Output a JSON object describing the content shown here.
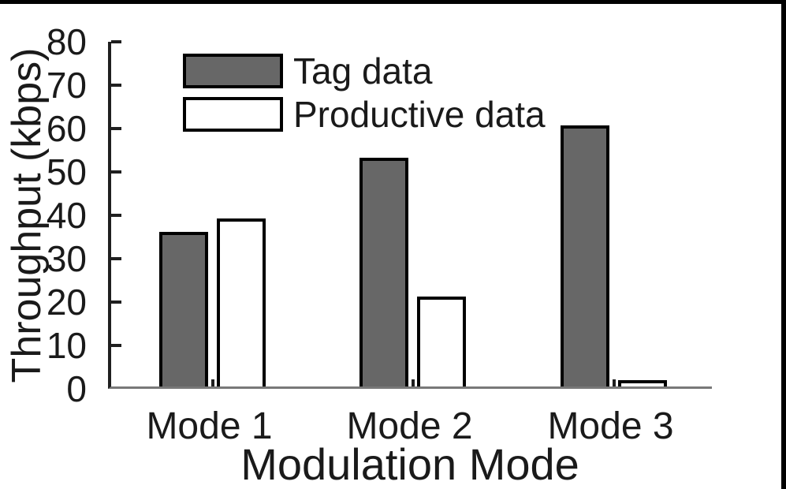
{
  "figure": {
    "background": "#ffffff",
    "frame_color": "#000000",
    "text_color": "#1a1a1a"
  },
  "chart_data": {
    "type": "bar",
    "title": "",
    "xlabel": "Modulation Mode",
    "ylabel": "Throughput (kbps)",
    "categories": [
      "Mode 1",
      "Mode 2",
      "Mode 3"
    ],
    "series": [
      {
        "name": "Tag data",
        "fill": "#676767",
        "edge": "#000000",
        "values": [
          35,
          52,
          59.5
        ]
      },
      {
        "name": "Productive data",
        "fill": "#ffffff",
        "edge": "#000000",
        "values": [
          38,
          20,
          0.7
        ]
      }
    ],
    "ylim": [
      0,
      80
    ],
    "yticks": [
      0,
      10,
      20,
      30,
      40,
      50,
      60,
      70,
      80
    ],
    "grid": false,
    "legend": {
      "position": "top-left-inside",
      "entries": [
        "Tag data",
        "Productive data"
      ]
    }
  }
}
